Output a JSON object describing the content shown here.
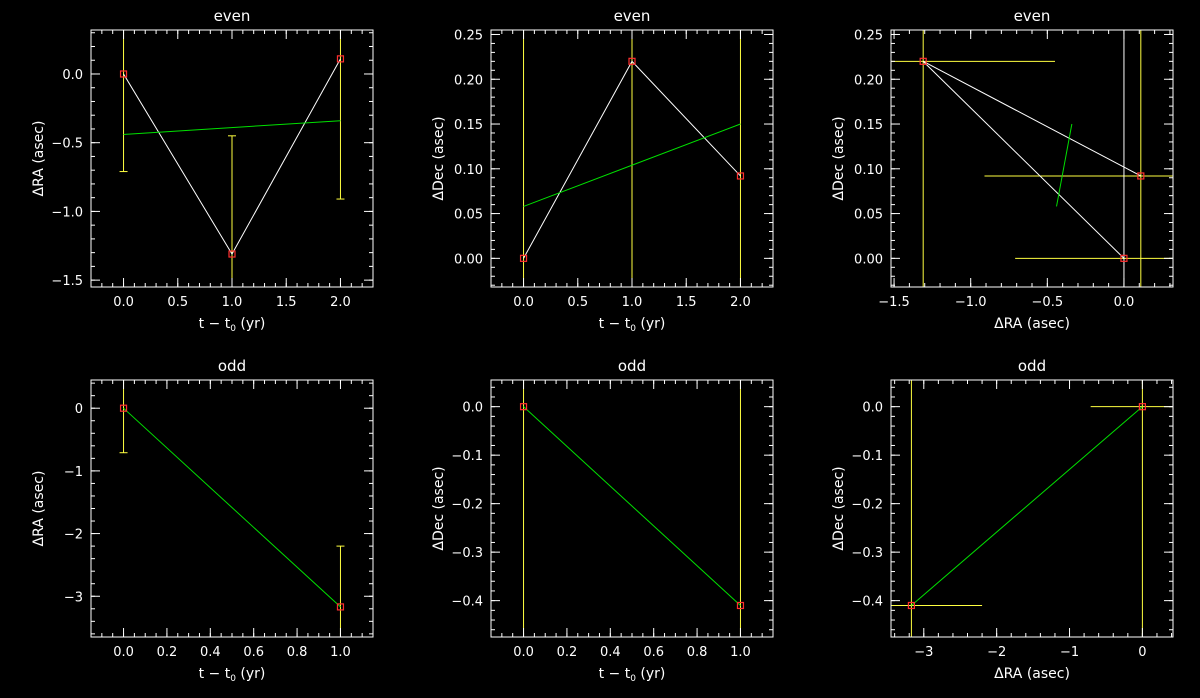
{
  "chart_data": [
    {
      "type": "scatter",
      "title": "even",
      "xlabel": "t − t",
      "xlabel_sub": "0",
      "xlabel_tail": " (yr)",
      "ylabel": "ΔRA (asec)",
      "xlim": [
        -0.3,
        2.3
      ],
      "ylim": [
        -1.55,
        0.32
      ],
      "xticks": [
        0.0,
        0.5,
        1.0,
        1.5,
        2.0
      ],
      "xtick_labels": [
        "0.0",
        "0.5",
        "1.0",
        "1.5",
        "2.0"
      ],
      "yticks": [
        -1.5,
        -1.0,
        -0.5,
        0.0
      ],
      "ytick_labels": [
        "−1.5",
        "−1.0",
        "−0.5",
        "0.0"
      ],
      "xminor": 0.1,
      "yminor": 0.1,
      "points": {
        "x": [
          0.0,
          1.0,
          2.0
        ],
        "y": [
          0.0,
          -1.31,
          0.11
        ]
      },
      "errorbars": [
        {
          "x": 0.0,
          "y0": -0.71,
          "y1": 0.32
        },
        {
          "x": 1.0,
          "y0": -1.55,
          "y1": -0.45
        },
        {
          "x": 2.0,
          "y0": -0.91,
          "y1": 0.32
        }
      ],
      "connect": true,
      "fit": {
        "x": [
          0.0,
          2.0
        ],
        "y": [
          -0.44,
          -0.34
        ]
      },
      "colors": {
        "axes": "#ffffff",
        "points": "#ff3030",
        "line": "#ffffff",
        "fit": "#00e000",
        "errors": "#ffff40"
      }
    },
    {
      "type": "scatter",
      "title": "even",
      "xlabel": "t − t",
      "xlabel_sub": "0",
      "xlabel_tail": " (yr)",
      "ylabel": "ΔDec (asec)",
      "xlim": [
        -0.3,
        2.3
      ],
      "ylim": [
        -0.032,
        0.255
      ],
      "xticks": [
        0.0,
        0.5,
        1.0,
        1.5,
        2.0
      ],
      "xtick_labels": [
        "0.0",
        "0.5",
        "1.0",
        "1.5",
        "2.0"
      ],
      "yticks": [
        0.0,
        0.05,
        0.1,
        0.15,
        0.2,
        0.25
      ],
      "ytick_labels": [
        "0.00",
        "0.05",
        "0.10",
        "0.15",
        "0.20",
        "0.25"
      ],
      "xminor": 0.1,
      "yminor": 0.01,
      "points": {
        "x": [
          0.0,
          1.0,
          2.0
        ],
        "y": [
          0.0,
          0.22,
          0.092
        ]
      },
      "errorbars": [
        {
          "x": 0.0,
          "y0": -0.032,
          "y1": 0.255
        },
        {
          "x": 1.0,
          "y0": -0.032,
          "y1": 0.255
        },
        {
          "x": 2.0,
          "y0": -0.032,
          "y1": 0.255
        }
      ],
      "connect": true,
      "fit": {
        "x": [
          0.0,
          2.0
        ],
        "y": [
          0.058,
          0.15
        ]
      },
      "colors": {
        "axes": "#ffffff",
        "points": "#ff3030",
        "line": "#ffffff",
        "fit": "#00e000",
        "errors": "#ffff40"
      }
    },
    {
      "type": "scatter",
      "title": "even",
      "xlabel": "ΔRA (asec)",
      "ylabel": "ΔDec (asec)",
      "xlim": [
        -1.52,
        0.32
      ],
      "ylim": [
        -0.032,
        0.255
      ],
      "xticks": [
        -1.5,
        -1.0,
        -0.5,
        0.0
      ],
      "xtick_labels": [
        "−1.5",
        "−1.0",
        "−0.5",
        "0.0"
      ],
      "yticks": [
        0.0,
        0.05,
        0.1,
        0.15,
        0.2,
        0.25
      ],
      "ytick_labels": [
        "0.00",
        "0.05",
        "0.10",
        "0.15",
        "0.20",
        "0.25"
      ],
      "xminor": 0.1,
      "yminor": 0.01,
      "points": {
        "x": [
          -1.31,
          0.0,
          0.11
        ],
        "y": [
          0.22,
          0.0,
          0.092
        ]
      },
      "hbars": [
        {
          "y": 0.22,
          "x0": -1.52,
          "x1": -0.45
        },
        {
          "y": 0.092,
          "x0": -0.91,
          "x1": 0.32
        },
        {
          "y": 0.0,
          "x0": -0.71,
          "x1": 0.32
        }
      ],
      "vbars": [
        {
          "x": -1.31,
          "y0": -0.032,
          "y1": 0.255
        },
        {
          "x": 0.11,
          "y0": -0.032,
          "y1": 0.255
        }
      ],
      "extra_lines": [
        {
          "x": [
            -1.31,
            0.11
          ],
          "y": [
            0.22,
            0.092
          ],
          "color": "#ffffff"
        },
        {
          "x": [
            -1.31,
            0.0
          ],
          "y": [
            0.22,
            0.0
          ],
          "color": "#ffffff"
        },
        {
          "x": [
            0.0,
            0.0
          ],
          "y": [
            -0.032,
            0.255
          ],
          "color": "#ffffff"
        },
        {
          "x": [
            -0.44,
            -0.34
          ],
          "y": [
            0.058,
            0.15
          ],
          "color": "#00e000"
        }
      ],
      "connect": false,
      "colors": {
        "axes": "#ffffff",
        "points": "#ff3030",
        "line": "#ffffff",
        "fit": "#00e000",
        "errors": "#ffff40"
      }
    },
    {
      "type": "scatter",
      "title": "odd",
      "xlabel": "t − t",
      "xlabel_sub": "0",
      "xlabel_tail": " (yr)",
      "ylabel": "ΔRA (asec)",
      "xlim": [
        -0.15,
        1.15
      ],
      "ylim": [
        -3.65,
        0.45
      ],
      "xticks": [
        0.0,
        0.2,
        0.4,
        0.6,
        0.8,
        1.0
      ],
      "xtick_labels": [
        "0.0",
        "0.2",
        "0.4",
        "0.6",
        "0.8",
        "1.0"
      ],
      "yticks": [
        -3,
        -2,
        -1,
        0
      ],
      "ytick_labels": [
        "−3",
        "−2",
        "−1",
        "0"
      ],
      "xminor": 0.05,
      "yminor": 0.2,
      "points": {
        "x": [
          0.0,
          1.0
        ],
        "y": [
          0.0,
          -3.17
        ]
      },
      "errorbars": [
        {
          "x": 0.0,
          "y0": -0.71,
          "y1": 0.45
        },
        {
          "x": 1.0,
          "y0": -3.65,
          "y1": -2.2
        }
      ],
      "connect": false,
      "fit": {
        "x": [
          0.0,
          1.0
        ],
        "y": [
          0.0,
          -3.17
        ]
      },
      "colors": {
        "axes": "#ffffff",
        "points": "#ff3030",
        "line": "#ffffff",
        "fit": "#00e000",
        "errors": "#ffff40"
      }
    },
    {
      "type": "scatter",
      "title": "odd",
      "xlabel": "t − t",
      "xlabel_sub": "0",
      "xlabel_tail": " (yr)",
      "ylabel": "ΔDec (asec)",
      "xlim": [
        -0.15,
        1.15
      ],
      "ylim": [
        -0.475,
        0.055
      ],
      "xticks": [
        0.0,
        0.2,
        0.4,
        0.6,
        0.8,
        1.0
      ],
      "xtick_labels": [
        "0.0",
        "0.2",
        "0.4",
        "0.6",
        "0.8",
        "1.0"
      ],
      "yticks": [
        -0.4,
        -0.3,
        -0.2,
        -0.1,
        0.0
      ],
      "ytick_labels": [
        "−0.4",
        "−0.3",
        "−0.2",
        "−0.1",
        "0.0"
      ],
      "xminor": 0.05,
      "yminor": 0.02,
      "points": {
        "x": [
          0.0,
          1.0
        ],
        "y": [
          0.0,
          -0.41
        ]
      },
      "errorbars": [
        {
          "x": 0.0,
          "y0": -0.475,
          "y1": 0.055
        },
        {
          "x": 1.0,
          "y0": -0.475,
          "y1": 0.055
        }
      ],
      "connect": false,
      "fit": {
        "x": [
          0.0,
          1.0
        ],
        "y": [
          0.0,
          -0.41
        ]
      },
      "colors": {
        "axes": "#ffffff",
        "points": "#ff3030",
        "line": "#ffffff",
        "fit": "#00e000",
        "errors": "#ffff40"
      }
    },
    {
      "type": "scatter",
      "title": "odd",
      "xlabel": "ΔRA (asec)",
      "ylabel": "ΔDec (asec)",
      "xlim": [
        -3.45,
        0.42
      ],
      "ylim": [
        -0.475,
        0.055
      ],
      "xticks": [
        -3,
        -2,
        -1,
        0
      ],
      "xtick_labels": [
        "−3",
        "−2",
        "−1",
        "0"
      ],
      "yticks": [
        -0.4,
        -0.3,
        -0.2,
        -0.1,
        0.0
      ],
      "ytick_labels": [
        "−0.4",
        "−0.3",
        "−0.2",
        "−0.1",
        "0.0"
      ],
      "xminor": 0.2,
      "yminor": 0.02,
      "points": {
        "x": [
          -3.17,
          0.0
        ],
        "y": [
          -0.41,
          0.0
        ]
      },
      "hbars": [
        {
          "y": -0.41,
          "x0": -3.45,
          "x1": -2.2
        },
        {
          "y": 0.0,
          "x0": -0.71,
          "x1": 0.42
        }
      ],
      "vbars": [
        {
          "x": -3.17,
          "y0": -0.475,
          "y1": 0.055
        },
        {
          "x": 0.0,
          "y0": -0.475,
          "y1": 0.055
        }
      ],
      "extra_lines": [
        {
          "x": [
            -3.17,
            0.0
          ],
          "y": [
            -0.41,
            0.0
          ],
          "color": "#00e000"
        }
      ],
      "connect": false,
      "colors": {
        "axes": "#ffffff",
        "points": "#ff3030",
        "line": "#ffffff",
        "fit": "#00e000",
        "errors": "#ffff40"
      }
    }
  ]
}
